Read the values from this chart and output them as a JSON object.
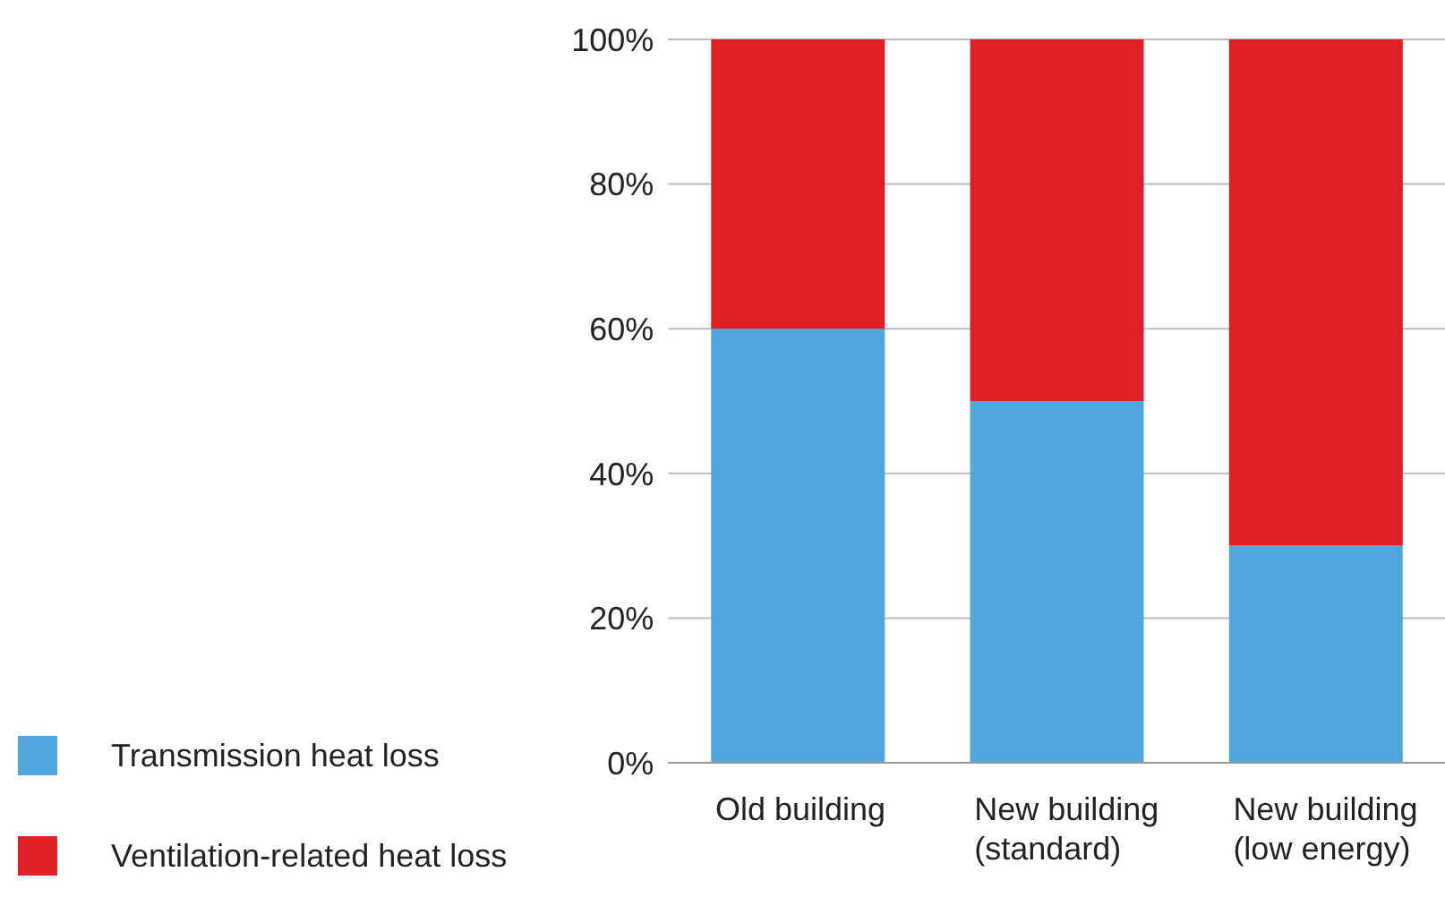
{
  "chart_data": {
    "type": "bar",
    "stacked": true,
    "categories": [
      "Old building",
      "New building (standard)",
      "New building (low energy)"
    ],
    "series": [
      {
        "name": "Transmission heat loss",
        "color": "#4fa7dd",
        "values": [
          60,
          50,
          30
        ]
      },
      {
        "name": "Ventilation-related heat loss",
        "color": "#e01f24",
        "values": [
          40,
          50,
          70
        ]
      }
    ],
    "ylim": [
      0,
      100
    ],
    "yticks": [
      {
        "value": 0,
        "label": "0%"
      },
      {
        "value": 20,
        "label": "20%"
      },
      {
        "value": 40,
        "label": "40%"
      },
      {
        "value": 60,
        "label": "60%"
      },
      {
        "value": 80,
        "label": "80%"
      },
      {
        "value": 100,
        "label": "100%"
      }
    ],
    "grid": "y",
    "legend": "bottom left"
  }
}
